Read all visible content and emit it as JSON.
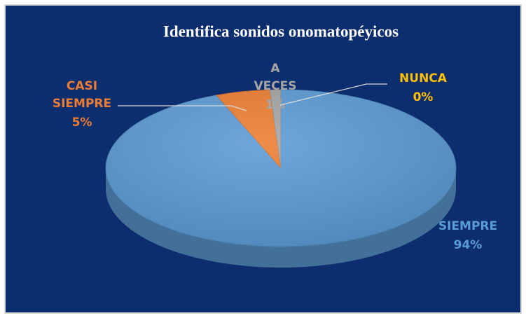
{
  "chart_data": {
    "type": "pie",
    "title": "Identifica sonidos onomatopéyicos",
    "categories": [
      "SIEMPRE",
      "CASI SIEMPRE",
      "A VECES",
      "NUNCA"
    ],
    "values": [
      94,
      5,
      1,
      0
    ],
    "value_labels": [
      "94%",
      "5%",
      "1%",
      "0%"
    ],
    "colors": [
      "#5b9bd5",
      "#ed7d31",
      "#a5a5a5",
      "#ffc000"
    ]
  }
}
